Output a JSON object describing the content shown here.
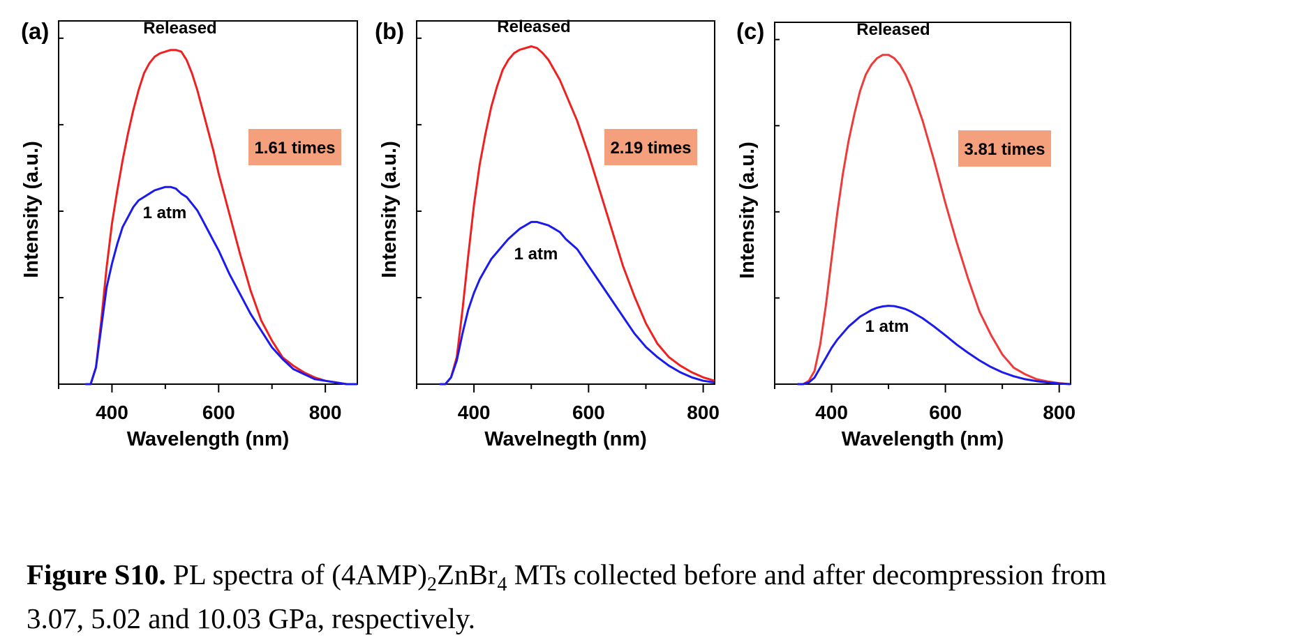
{
  "chart_data": [
    {
      "type": "line",
      "panel_label": "(a)",
      "xlabel": "Wavelength (nm)",
      "ylabel": "Intensity (a.u.)",
      "xlim": [
        300,
        860
      ],
      "xticks": [
        400,
        600,
        800
      ],
      "ylim": [
        0,
        1
      ],
      "yticks_labeled": false,
      "annotation_box": "1.61 times",
      "series": [
        {
          "name": "Released",
          "color": "#ef2020",
          "x": [
            350,
            360,
            370,
            380,
            390,
            400,
            410,
            420,
            430,
            440,
            450,
            460,
            470,
            480,
            490,
            500,
            510,
            520,
            530,
            540,
            550,
            560,
            570,
            580,
            590,
            600,
            620,
            640,
            660,
            680,
            700,
            720,
            740,
            760,
            780,
            800,
            820,
            840,
            860
          ],
          "y": [
            0.0,
            0.0,
            0.05,
            0.19,
            0.35,
            0.48,
            0.58,
            0.67,
            0.75,
            0.82,
            0.88,
            0.93,
            0.96,
            0.98,
            0.99,
            0.995,
            1.0,
            1.0,
            0.995,
            0.97,
            0.93,
            0.88,
            0.82,
            0.76,
            0.7,
            0.63,
            0.51,
            0.39,
            0.28,
            0.19,
            0.13,
            0.08,
            0.055,
            0.035,
            0.02,
            0.01,
            0.005,
            0.0,
            0.0
          ]
        },
        {
          "name": "1 atm",
          "color": "#1a1aee",
          "x": [
            350,
            360,
            370,
            380,
            390,
            400,
            410,
            420,
            430,
            440,
            450,
            460,
            470,
            480,
            490,
            500,
            510,
            520,
            530,
            540,
            550,
            560,
            570,
            580,
            590,
            600,
            620,
            640,
            660,
            680,
            700,
            720,
            740,
            760,
            780,
            800,
            820,
            840,
            860
          ],
          "y": [
            0.0,
            0.0,
            0.05,
            0.17,
            0.29,
            0.36,
            0.42,
            0.47,
            0.5,
            0.53,
            0.55,
            0.56,
            0.57,
            0.58,
            0.585,
            0.59,
            0.59,
            0.585,
            0.57,
            0.56,
            0.54,
            0.52,
            0.49,
            0.46,
            0.43,
            0.4,
            0.33,
            0.27,
            0.21,
            0.16,
            0.11,
            0.075,
            0.045,
            0.03,
            0.015,
            0.01,
            0.005,
            0.0,
            0.0
          ]
        }
      ],
      "annotations": [
        "Released",
        "1 atm"
      ]
    },
    {
      "type": "line",
      "panel_label": "(b)",
      "xlabel": "Wavelnegth (nm)",
      "ylabel": "Intensity (a.u.)",
      "xlim": [
        300,
        820
      ],
      "xticks": [
        400,
        600,
        800
      ],
      "ylim": [
        0,
        1
      ],
      "yticks_labeled": false,
      "annotation_box": "2.19 times",
      "series": [
        {
          "name": "Released",
          "color": "#ef2020",
          "x": [
            340,
            350,
            360,
            370,
            380,
            390,
            400,
            410,
            420,
            430,
            440,
            450,
            460,
            470,
            480,
            490,
            500,
            510,
            520,
            530,
            540,
            550,
            560,
            580,
            600,
            620,
            640,
            660,
            680,
            700,
            720,
            740,
            760,
            780,
            800,
            820
          ],
          "y": [
            0.0,
            0.0,
            0.02,
            0.08,
            0.22,
            0.38,
            0.53,
            0.65,
            0.74,
            0.82,
            0.88,
            0.93,
            0.96,
            0.98,
            0.99,
            0.995,
            1.0,
            0.995,
            0.98,
            0.96,
            0.93,
            0.9,
            0.86,
            0.78,
            0.68,
            0.57,
            0.46,
            0.35,
            0.26,
            0.18,
            0.12,
            0.08,
            0.055,
            0.035,
            0.02,
            0.01
          ]
        },
        {
          "name": "1 atm",
          "color": "#1a1aee",
          "x": [
            340,
            350,
            360,
            370,
            380,
            390,
            400,
            410,
            420,
            430,
            440,
            450,
            460,
            470,
            480,
            490,
            500,
            510,
            520,
            530,
            540,
            550,
            560,
            580,
            600,
            620,
            640,
            660,
            680,
            700,
            720,
            740,
            760,
            780,
            800,
            820
          ],
          "y": [
            0.0,
            0.0,
            0.02,
            0.07,
            0.15,
            0.22,
            0.27,
            0.31,
            0.34,
            0.37,
            0.39,
            0.41,
            0.43,
            0.445,
            0.46,
            0.47,
            0.48,
            0.48,
            0.475,
            0.47,
            0.46,
            0.45,
            0.43,
            0.4,
            0.35,
            0.3,
            0.25,
            0.2,
            0.15,
            0.11,
            0.08,
            0.055,
            0.035,
            0.02,
            0.01,
            0.005
          ]
        }
      ],
      "annotations": [
        "Released",
        "1 atm"
      ]
    },
    {
      "type": "line",
      "panel_label": "(c)",
      "xlabel": "Wavelength (nm)",
      "ylabel": "Intensity (a.u.)",
      "xlim": [
        300,
        820
      ],
      "xticks": [
        400,
        600,
        800
      ],
      "ylim": [
        0,
        1
      ],
      "yticks_labeled": false,
      "annotation_box": "3.81 times",
      "series": [
        {
          "name": "Released",
          "color": "#ef3a3a",
          "x": [
            340,
            350,
            360,
            370,
            380,
            390,
            400,
            410,
            420,
            430,
            440,
            450,
            460,
            470,
            480,
            490,
            500,
            510,
            520,
            530,
            540,
            560,
            580,
            600,
            620,
            640,
            660,
            680,
            700,
            720,
            740,
            760,
            780,
            800,
            820
          ],
          "y": [
            0.0,
            0.0,
            0.01,
            0.04,
            0.12,
            0.24,
            0.38,
            0.52,
            0.64,
            0.74,
            0.82,
            0.89,
            0.94,
            0.97,
            0.99,
            1.0,
            1.0,
            0.99,
            0.97,
            0.94,
            0.9,
            0.8,
            0.68,
            0.55,
            0.43,
            0.32,
            0.22,
            0.15,
            0.09,
            0.05,
            0.03,
            0.015,
            0.008,
            0.003,
            0.0
          ]
        },
        {
          "name": "1 atm",
          "color": "#1a1aee",
          "x": [
            340,
            350,
            360,
            370,
            380,
            390,
            400,
            410,
            420,
            430,
            440,
            450,
            460,
            470,
            480,
            490,
            500,
            510,
            520,
            530,
            540,
            560,
            580,
            600,
            620,
            640,
            660,
            680,
            700,
            720,
            740,
            760,
            780,
            800,
            820
          ],
          "y": [
            0.0,
            0.0,
            0.005,
            0.02,
            0.05,
            0.08,
            0.11,
            0.135,
            0.155,
            0.175,
            0.19,
            0.205,
            0.215,
            0.225,
            0.232,
            0.236,
            0.238,
            0.237,
            0.233,
            0.228,
            0.22,
            0.2,
            0.175,
            0.148,
            0.12,
            0.095,
            0.072,
            0.052,
            0.036,
            0.024,
            0.015,
            0.009,
            0.005,
            0.002,
            0.0
          ]
        }
      ],
      "annotations": [
        "Released",
        "1 atm"
      ]
    }
  ],
  "caption": {
    "label": "Figure S10.",
    "line1_pre": " PL spectra of (4AMP)",
    "sub1": "2",
    "mid": "ZnBr",
    "sub2": "4",
    "line1_post": " MTs collected before and after decompression from",
    "line2": "3.07, 5.02 and 10.03 GPa, respectively."
  },
  "colors": {
    "box_fill": "#f4a07c"
  }
}
